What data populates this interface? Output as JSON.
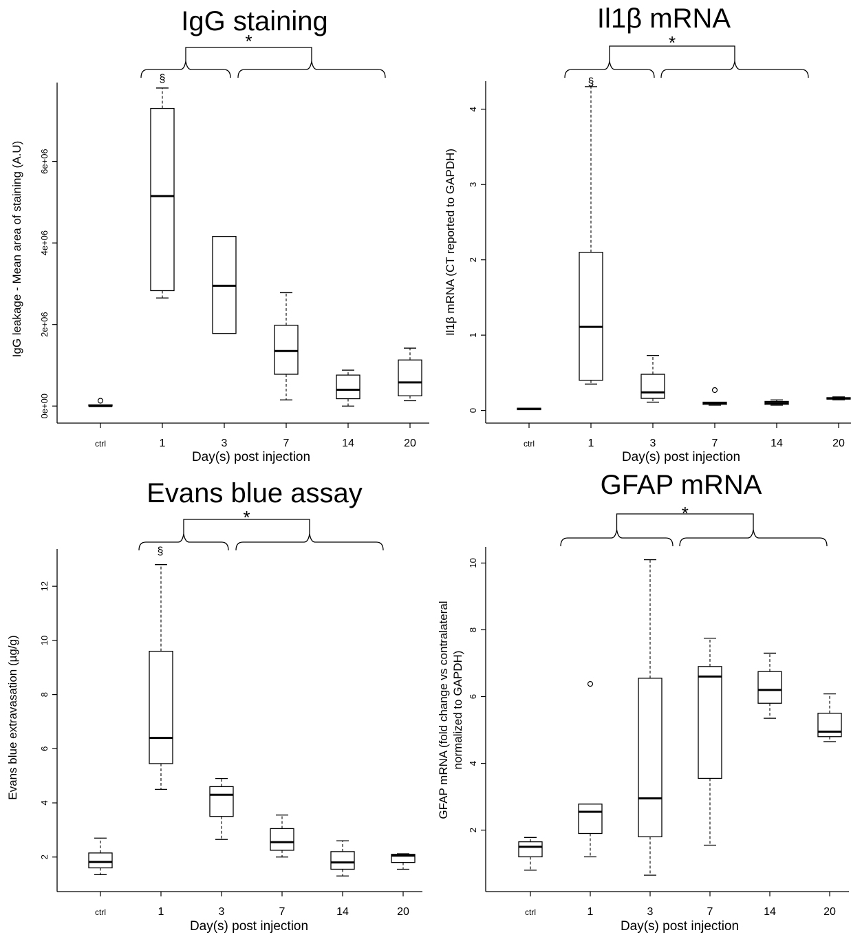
{
  "chart_data": [
    {
      "type": "box",
      "title": "IgG staining",
      "xlabel": "Day(s) post injection",
      "ylabel": "IgG leakage - Mean area of staining (A.U)",
      "categories": [
        "ctrl",
        "1",
        "3",
        "7",
        "14",
        "20"
      ],
      "ylim": [
        -300000,
        7900000
      ],
      "yticks": [
        0,
        2000000,
        4000000,
        6000000
      ],
      "ytick_labels": [
        "0e+00",
        "2e+06",
        "4e+06",
        "6e+06"
      ],
      "boxes": [
        {
          "min": 0,
          "q1": 0,
          "median": 0,
          "q3": 30000,
          "max": 30000,
          "outliers": [
            130000
          ]
        },
        {
          "min": 2650000,
          "q1": 2830000,
          "median": 5150000,
          "q3": 7300000,
          "max": 7800000,
          "outliers": []
        },
        {
          "min": 1780000,
          "q1": 1780000,
          "median": 2950000,
          "q3": 4160000,
          "max": 4160000,
          "outliers": []
        },
        {
          "min": 150000,
          "q1": 780000,
          "median": 1350000,
          "q3": 1980000,
          "max": 2780000,
          "outliers": []
        },
        {
          "min": 0,
          "q1": 180000,
          "median": 400000,
          "q3": 760000,
          "max": 880000,
          "outliers": []
        },
        {
          "min": 130000,
          "q1": 250000,
          "median": 580000,
          "q3": 1130000,
          "max": 1420000,
          "outliers": []
        }
      ],
      "annotations": {
        "significance": "*",
        "section_mark": "§"
      }
    },
    {
      "type": "box",
      "title": "Il1β mRNA",
      "xlabel": "Day(s) post injection",
      "ylabel": "Il1β  mRNA (CT reported to GAPDH)",
      "categories": [
        "ctrl",
        "1",
        "3",
        "7",
        "14",
        "20"
      ],
      "ylim": [
        -0.15,
        4.4
      ],
      "yticks": [
        0,
        1,
        2,
        3,
        4
      ],
      "ytick_labels": [
        "0",
        "1",
        "2",
        "3",
        "4"
      ],
      "boxes": [
        {
          "min": 0.01,
          "q1": 0.01,
          "median": 0.02,
          "q3": 0.03,
          "max": 0.03,
          "outliers": []
        },
        {
          "min": 0.35,
          "q1": 0.4,
          "median": 1.11,
          "q3": 2.1,
          "max": 4.3,
          "outliers": []
        },
        {
          "min": 0.11,
          "q1": 0.16,
          "median": 0.24,
          "q3": 0.48,
          "max": 0.73,
          "outliers": []
        },
        {
          "min": 0.07,
          "q1": 0.08,
          "median": 0.1,
          "q3": 0.11,
          "max": 0.11,
          "outliers": [
            0.27
          ]
        },
        {
          "min": 0.07,
          "q1": 0.08,
          "median": 0.1,
          "q3": 0.12,
          "max": 0.14,
          "outliers": []
        },
        {
          "min": 0.14,
          "q1": 0.15,
          "median": 0.16,
          "q3": 0.17,
          "max": 0.18,
          "outliers": []
        }
      ],
      "annotations": {
        "significance": "*",
        "section_mark": "§"
      }
    },
    {
      "type": "box",
      "title": "Evans blue assay",
      "xlabel": "Day(s) post injection",
      "ylabel": "Evans blue extravasation (µg/g)",
      "categories": [
        "ctrl",
        "1",
        "3",
        "7",
        "14",
        "20"
      ],
      "ylim": [
        0.8,
        13.3
      ],
      "yticks": [
        2,
        4,
        6,
        8,
        10,
        12
      ],
      "ytick_labels": [
        "2",
        "4",
        "6",
        "8",
        "10",
        "12"
      ],
      "boxes": [
        {
          "min": 1.35,
          "q1": 1.6,
          "median": 1.82,
          "q3": 2.15,
          "max": 2.7,
          "outliers": []
        },
        {
          "min": 4.5,
          "q1": 5.45,
          "median": 6.4,
          "q3": 9.6,
          "max": 12.8,
          "outliers": []
        },
        {
          "min": 2.65,
          "q1": 3.5,
          "median": 4.3,
          "q3": 4.6,
          "max": 4.9,
          "outliers": []
        },
        {
          "min": 2.0,
          "q1": 2.25,
          "median": 2.55,
          "q3": 3.05,
          "max": 3.55,
          "outliers": []
        },
        {
          "min": 1.3,
          "q1": 1.55,
          "median": 1.8,
          "q3": 2.2,
          "max": 2.6,
          "outliers": []
        },
        {
          "min": 1.55,
          "q1": 1.8,
          "median": 2.05,
          "q3": 2.1,
          "max": 2.12,
          "outliers": []
        }
      ],
      "annotations": {
        "significance": "*",
        "section_mark": "§"
      }
    },
    {
      "type": "box",
      "title": "GFAP mRNA",
      "xlabel": "Day(s) post injection",
      "ylabel_lines": [
        "GFAP  mRNA  (fold change vs contralateral",
        "normalized to GAPDH)"
      ],
      "categories": [
        "ctrl",
        "1",
        "3",
        "7",
        "14",
        "20"
      ],
      "ylim": [
        0.2,
        10.4
      ],
      "yticks": [
        2,
        4,
        6,
        8,
        10
      ],
      "ytick_labels": [
        "2",
        "4",
        "6",
        "8",
        "10"
      ],
      "boxes": [
        {
          "min": 0.8,
          "q1": 1.2,
          "median": 1.5,
          "q3": 1.65,
          "max": 1.78,
          "outliers": []
        },
        {
          "min": 1.2,
          "q1": 1.9,
          "median": 2.55,
          "q3": 2.78,
          "max": 2.78,
          "outliers": [
            6.38
          ]
        },
        {
          "min": 0.65,
          "q1": 1.8,
          "median": 2.95,
          "q3": 6.55,
          "max": 10.1,
          "outliers": []
        },
        {
          "min": 1.55,
          "q1": 3.55,
          "median": 6.6,
          "q3": 6.9,
          "max": 7.75,
          "outliers": []
        },
        {
          "min": 5.35,
          "q1": 5.8,
          "median": 6.2,
          "q3": 6.75,
          "max": 7.3,
          "outliers": []
        },
        {
          "min": 4.65,
          "q1": 4.8,
          "median": 4.95,
          "q3": 5.5,
          "max": 6.08,
          "outliers": []
        }
      ],
      "annotations": {
        "significance": "*"
      }
    }
  ]
}
